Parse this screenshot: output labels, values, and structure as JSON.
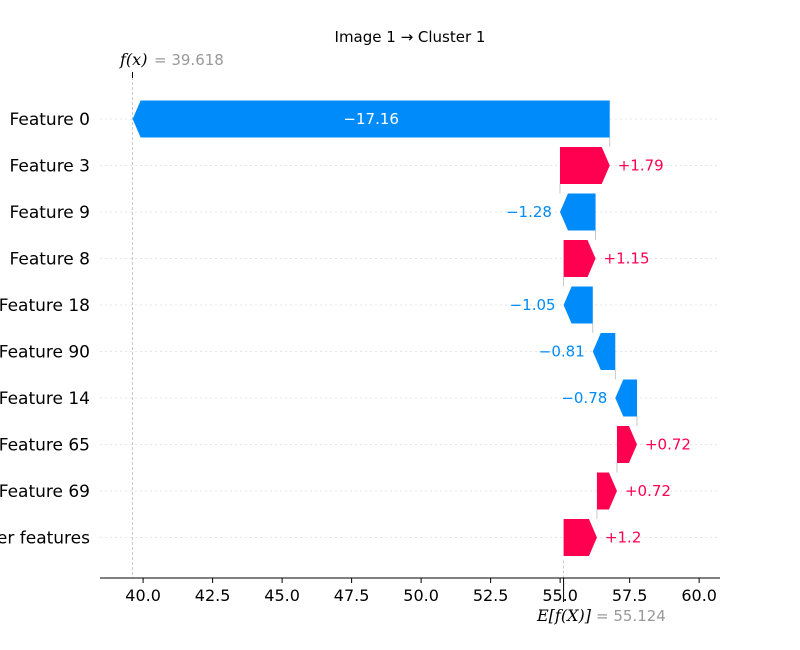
{
  "chart_data": {
    "type": "bar",
    "subtype": "waterfall",
    "title": "Image 1 → Cluster 1",
    "base_value": 55.124,
    "output_value": 39.618,
    "base_label": {
      "name": "E[f(X)]",
      "text": "= 55.124"
    },
    "output_label": {
      "name": "f(x)",
      "text": "= 39.618"
    },
    "features": [
      {
        "name": "Feature 0",
        "value": -17.16,
        "label": "−17.16"
      },
      {
        "name": "Feature 3",
        "value": 1.79,
        "label": "+1.79"
      },
      {
        "name": "Feature 9",
        "value": -1.28,
        "label": "−1.28"
      },
      {
        "name": "Feature 8",
        "value": 1.15,
        "label": "+1.15"
      },
      {
        "name": "Feature 18",
        "value": -1.05,
        "label": "−1.05"
      },
      {
        "name": "Feature 90",
        "value": -0.81,
        "label": "−0.81"
      },
      {
        "name": "Feature 14",
        "value": -0.78,
        "label": "−0.78"
      },
      {
        "name": "Feature 65",
        "value": 0.72,
        "label": "+0.72"
      },
      {
        "name": "Feature 69",
        "value": 0.72,
        "label": "+0.72"
      },
      {
        "name": "er features",
        "value": 1.2,
        "label": "+1.2"
      }
    ],
    "xlim": [
      38.45,
      60.75
    ],
    "xticks": [
      "40.0",
      "42.5",
      "45.0",
      "47.5",
      "50.0",
      "52.5",
      "55.0",
      "57.5",
      "60.0"
    ],
    "xtick_values": [
      40.0,
      42.5,
      45.0,
      47.5,
      50.0,
      52.5,
      55.0,
      57.5,
      60.0
    ],
    "colors": {
      "positive": "#ff0051",
      "negative": "#008bfb",
      "muted": "#999999"
    }
  }
}
